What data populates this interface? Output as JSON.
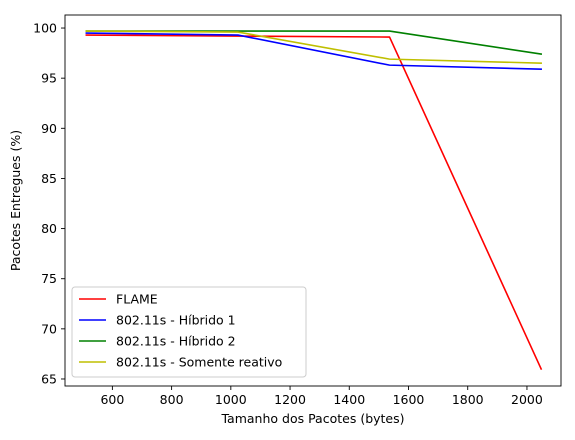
{
  "chart_data": {
    "type": "line",
    "title": "",
    "xlabel": "Tamanho dos Pacotes (bytes)",
    "ylabel": "Pacotes Entregues (%)",
    "xlim": [
      440,
      2115
    ],
    "ylim": [
      64.3,
      101.3
    ],
    "xticks": [
      600,
      800,
      1000,
      1200,
      1400,
      1600,
      1800,
      2000
    ],
    "yticks": [
      65,
      70,
      75,
      80,
      85,
      90,
      95,
      100
    ],
    "x": [
      512,
      1024,
      1536,
      2048
    ],
    "grid": false,
    "legend_position": "lower-left",
    "series": [
      {
        "name": "FLAME",
        "color": "#ff0000",
        "values": [
          99.3,
          99.2,
          99.1,
          66.0
        ]
      },
      {
        "name": "802.11s - Híbrido 1",
        "color": "#0000ff",
        "values": [
          99.5,
          99.3,
          96.3,
          95.9
        ]
      },
      {
        "name": "802.11s - Híbrido 2",
        "color": "#008000",
        "values": [
          99.7,
          99.7,
          99.7,
          97.4
        ]
      },
      {
        "name": "802.11s - Somente reativo",
        "color": "#bfbf00",
        "values": [
          99.7,
          99.6,
          96.9,
          96.5
        ]
      }
    ]
  }
}
